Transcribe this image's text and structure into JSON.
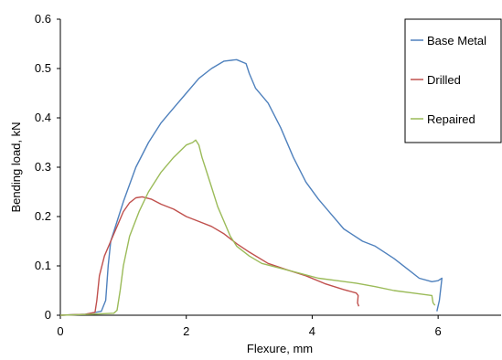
{
  "chart_data": {
    "type": "line",
    "title": "",
    "xlabel": "Flexure,  mm",
    "ylabel": "Bending load,  kN",
    "xlim": [
      0,
      7
    ],
    "ylim": [
      0,
      0.6
    ],
    "xticks": [
      0,
      2,
      4,
      6
    ],
    "xtick_labels": [
      "0",
      "2",
      "4",
      "6"
    ],
    "yticks": [
      0,
      0.1,
      0.2,
      0.3,
      0.4,
      0.5,
      0.6
    ],
    "ytick_labels": [
      "0",
      "0.1",
      "0.2",
      "0.3",
      "0.4",
      "0.5",
      "0.6"
    ],
    "grid": false,
    "legend_position": "top-right",
    "series": [
      {
        "name": "Base Metal",
        "color": "#4f81bd",
        "points": [
          [
            0,
            0
          ],
          [
            0.4,
            0.002
          ],
          [
            0.65,
            0.008
          ],
          [
            0.72,
            0.03
          ],
          [
            0.76,
            0.1
          ],
          [
            0.8,
            0.15
          ],
          [
            0.9,
            0.19
          ],
          [
            1.0,
            0.23
          ],
          [
            1.2,
            0.3
          ],
          [
            1.4,
            0.35
          ],
          [
            1.6,
            0.39
          ],
          [
            1.8,
            0.42
          ],
          [
            2.0,
            0.45
          ],
          [
            2.2,
            0.48
          ],
          [
            2.4,
            0.5
          ],
          [
            2.6,
            0.515
          ],
          [
            2.8,
            0.518
          ],
          [
            2.95,
            0.51
          ],
          [
            3.0,
            0.49
          ],
          [
            3.1,
            0.46
          ],
          [
            3.3,
            0.43
          ],
          [
            3.5,
            0.38
          ],
          [
            3.7,
            0.32
          ],
          [
            3.9,
            0.27
          ],
          [
            4.1,
            0.235
          ],
          [
            4.3,
            0.205
          ],
          [
            4.5,
            0.175
          ],
          [
            4.8,
            0.15
          ],
          [
            5.0,
            0.14
          ],
          [
            5.3,
            0.115
          ],
          [
            5.5,
            0.095
          ],
          [
            5.7,
            0.075
          ],
          [
            5.9,
            0.068
          ],
          [
            6.0,
            0.07
          ],
          [
            6.06,
            0.075
          ],
          [
            6.02,
            0.03
          ],
          [
            5.98,
            0.008
          ]
        ]
      },
      {
        "name": "Drilled",
        "color": "#c0504d",
        "points": [
          [
            0,
            0
          ],
          [
            0.4,
            0.002
          ],
          [
            0.55,
            0.006
          ],
          [
            0.58,
            0.03
          ],
          [
            0.62,
            0.08
          ],
          [
            0.7,
            0.12
          ],
          [
            0.8,
            0.15
          ],
          [
            0.9,
            0.18
          ],
          [
            1.0,
            0.21
          ],
          [
            1.1,
            0.228
          ],
          [
            1.2,
            0.238
          ],
          [
            1.3,
            0.24
          ],
          [
            1.45,
            0.235
          ],
          [
            1.6,
            0.225
          ],
          [
            1.8,
            0.215
          ],
          [
            2.0,
            0.2
          ],
          [
            2.2,
            0.19
          ],
          [
            2.4,
            0.18
          ],
          [
            2.6,
            0.165
          ],
          [
            2.8,
            0.145
          ],
          [
            3.0,
            0.128
          ],
          [
            3.3,
            0.105
          ],
          [
            3.6,
            0.092
          ],
          [
            3.9,
            0.08
          ],
          [
            4.2,
            0.064
          ],
          [
            4.5,
            0.052
          ],
          [
            4.7,
            0.045
          ],
          [
            4.73,
            0.04
          ],
          [
            4.72,
            0.025
          ],
          [
            4.74,
            0.018
          ]
        ]
      },
      {
        "name": "Repaired",
        "color": "#9bbb59",
        "points": [
          [
            0,
            0
          ],
          [
            0.5,
            0.002
          ],
          [
            0.85,
            0.004
          ],
          [
            0.9,
            0.01
          ],
          [
            0.95,
            0.05
          ],
          [
            1.0,
            0.1
          ],
          [
            1.1,
            0.16
          ],
          [
            1.25,
            0.21
          ],
          [
            1.4,
            0.25
          ],
          [
            1.6,
            0.29
          ],
          [
            1.8,
            0.32
          ],
          [
            2.0,
            0.345
          ],
          [
            2.1,
            0.35
          ],
          [
            2.15,
            0.355
          ],
          [
            2.2,
            0.345
          ],
          [
            2.25,
            0.32
          ],
          [
            2.3,
            0.3
          ],
          [
            2.4,
            0.26
          ],
          [
            2.5,
            0.22
          ],
          [
            2.6,
            0.19
          ],
          [
            2.7,
            0.16
          ],
          [
            2.8,
            0.14
          ],
          [
            3.0,
            0.12
          ],
          [
            3.2,
            0.105
          ],
          [
            3.5,
            0.095
          ],
          [
            3.8,
            0.085
          ],
          [
            4.1,
            0.075
          ],
          [
            4.4,
            0.07
          ],
          [
            4.7,
            0.065
          ],
          [
            5.0,
            0.058
          ],
          [
            5.3,
            0.05
          ],
          [
            5.6,
            0.045
          ],
          [
            5.9,
            0.04
          ],
          [
            5.92,
            0.025
          ],
          [
            5.95,
            0.02
          ]
        ]
      }
    ]
  }
}
